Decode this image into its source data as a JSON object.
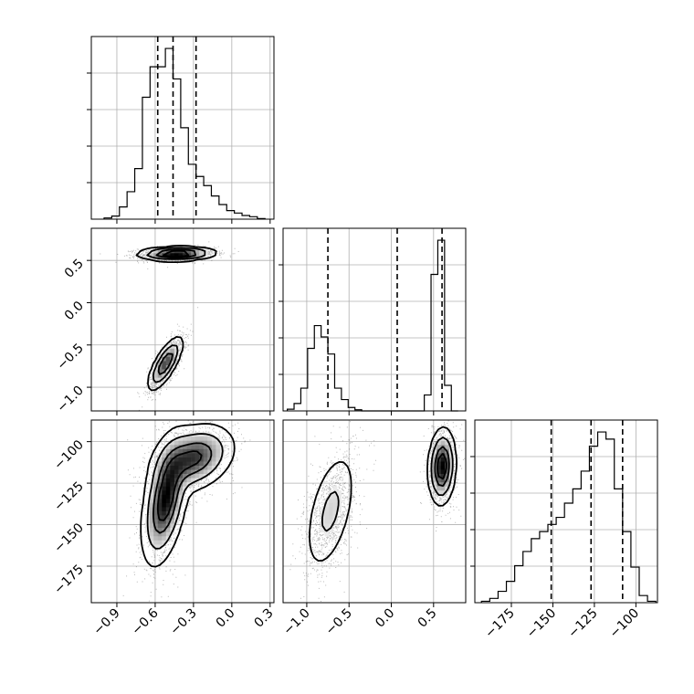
{
  "chart_data": {
    "type": "corner",
    "grid": true,
    "parameters": [
      {
        "title": "",
        "range": [
          -1.1,
          0.33
        ],
        "ticks": [
          -0.9,
          -0.6,
          -0.3,
          0.0,
          0.3
        ],
        "tick_labels": [
          "−0.9",
          "−0.6",
          "−0.3",
          "0.0",
          "0.3"
        ],
        "quantiles": [
          -0.58,
          -0.46,
          -0.28
        ],
        "hist_edges": [
          -1.0,
          -0.94,
          -0.88,
          -0.82,
          -0.76,
          -0.7,
          -0.64,
          -0.58,
          -0.52,
          -0.46,
          -0.4,
          -0.34,
          -0.28,
          -0.22,
          -0.16,
          -0.1,
          -0.04,
          0.02,
          0.08,
          0.14,
          0.2,
          0.26
        ],
        "hist_counts": [
          2,
          5,
          20,
          45,
          83,
          200,
          250,
          250,
          280,
          230,
          150,
          90,
          70,
          55,
          38,
          24,
          14,
          10,
          6,
          4,
          1
        ]
      },
      {
        "title": "",
        "range": [
          -1.28,
          0.88
        ],
        "ticks": [
          -1.0,
          -0.5,
          0.0,
          0.5
        ],
        "tick_labels": [
          "−1.0",
          "−0.5",
          "0.0",
          "0.5"
        ],
        "quantiles": [
          -0.75,
          0.07,
          0.6
        ],
        "hist_edges": [
          -1.23,
          -1.15,
          -1.07,
          -0.99,
          -0.91,
          -0.83,
          -0.75,
          -0.67,
          -0.59,
          -0.51,
          -0.43,
          -0.35,
          -0.27,
          0.39,
          0.47,
          0.55,
          0.63,
          0.71,
          0.79
        ],
        "hist_counts": [
          3,
          13,
          40,
          110,
          150,
          130,
          100,
          40,
          20,
          6,
          2,
          0,
          0,
          28,
          240,
          300,
          45,
          0
        ]
      },
      {
        "title": "",
        "range": [
          -197,
          -87
        ],
        "ticks": [
          -175,
          -150,
          -125,
          -100
        ],
        "tick_labels": [
          "−175",
          "−150",
          "−125",
          "−100"
        ],
        "quantiles": [
          -151,
          -127,
          -108
        ],
        "hist_edges": [
          -193,
          -188,
          -183,
          -178,
          -173,
          -168,
          -163,
          -158,
          -153,
          -148,
          -143,
          -138,
          -133,
          -128,
          -123,
          -118,
          -113,
          -108,
          -103,
          -98,
          -93,
          -88
        ],
        "hist_counts": [
          2,
          6,
          16,
          30,
          52,
          72,
          90,
          100,
          110,
          120,
          140,
          160,
          185,
          220,
          240,
          230,
          160,
          100,
          50,
          10,
          2
        ]
      }
    ],
    "pairs": [
      {
        "x_param": 0,
        "y_param": 1,
        "clusters": [
          {
            "center": [
              -0.43,
              0.58
            ],
            "sd": [
              0.13,
              0.035
            ],
            "rho": 0.1,
            "weight": 0.55
          },
          {
            "center": [
              -0.52,
              -0.72
            ],
            "sd": [
              0.06,
              0.14
            ],
            "rho": 0.75,
            "weight": 0.45
          }
        ]
      },
      {
        "x_param": 0,
        "y_param": 2,
        "clusters": [
          {
            "center": [
              -0.52,
              -135
            ],
            "sd": [
              0.08,
              17
            ],
            "rho": 0.45,
            "weight": 0.55
          },
          {
            "center": [
              -0.3,
              -110
            ],
            "sd": [
              0.14,
              9
            ],
            "rho": 0.3,
            "weight": 0.45
          }
        ]
      },
      {
        "x_param": 1,
        "y_param": 2,
        "clusters": [
          {
            "center": [
              -0.72,
              -142
            ],
            "sd": [
              0.14,
              17
            ],
            "rho": 0.5,
            "weight": 0.45
          },
          {
            "center": [
              0.6,
              -115
            ],
            "sd": [
              0.07,
              10
            ],
            "rho": 0.1,
            "weight": 0.55
          }
        ]
      }
    ]
  }
}
